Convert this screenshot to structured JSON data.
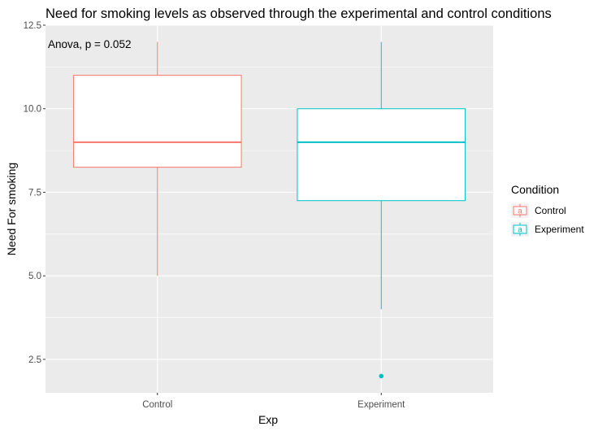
{
  "chart_data": {
    "type": "boxplot",
    "title": "Need for smoking levels as observed through the experimental and control conditions",
    "xlabel": "Exp",
    "ylabel": "Need For smoking",
    "ylim": [
      1.5,
      12.5
    ],
    "yticks": [
      "2.5",
      "5.0",
      "7.5",
      "10.0",
      "12.5"
    ],
    "ytick_values": [
      2.5,
      5.0,
      7.5,
      10.0,
      12.5
    ],
    "categories": [
      "Control",
      "Experiment"
    ],
    "annotation": "Anova, p = 0.052",
    "grid": true,
    "legend": {
      "title": "Condition",
      "position": "right",
      "entries": [
        {
          "label": "Control",
          "symbol": "a",
          "color": "#F8766D"
        },
        {
          "label": "Experiment",
          "symbol": "a",
          "color": "#00BFC4"
        }
      ]
    },
    "series": [
      {
        "name": "Control",
        "color": "#F8766D",
        "whisker_low": 5.0,
        "q1": 8.25,
        "median": 9.0,
        "q3": 11.0,
        "whisker_high": 12.0,
        "outliers": []
      },
      {
        "name": "Experiment",
        "color": "#00BFC4",
        "whisker_low": 4.0,
        "q1": 7.25,
        "median": 9.0,
        "q3": 10.0,
        "whisker_high": 12.0,
        "outliers": [
          2.0
        ]
      }
    ]
  }
}
